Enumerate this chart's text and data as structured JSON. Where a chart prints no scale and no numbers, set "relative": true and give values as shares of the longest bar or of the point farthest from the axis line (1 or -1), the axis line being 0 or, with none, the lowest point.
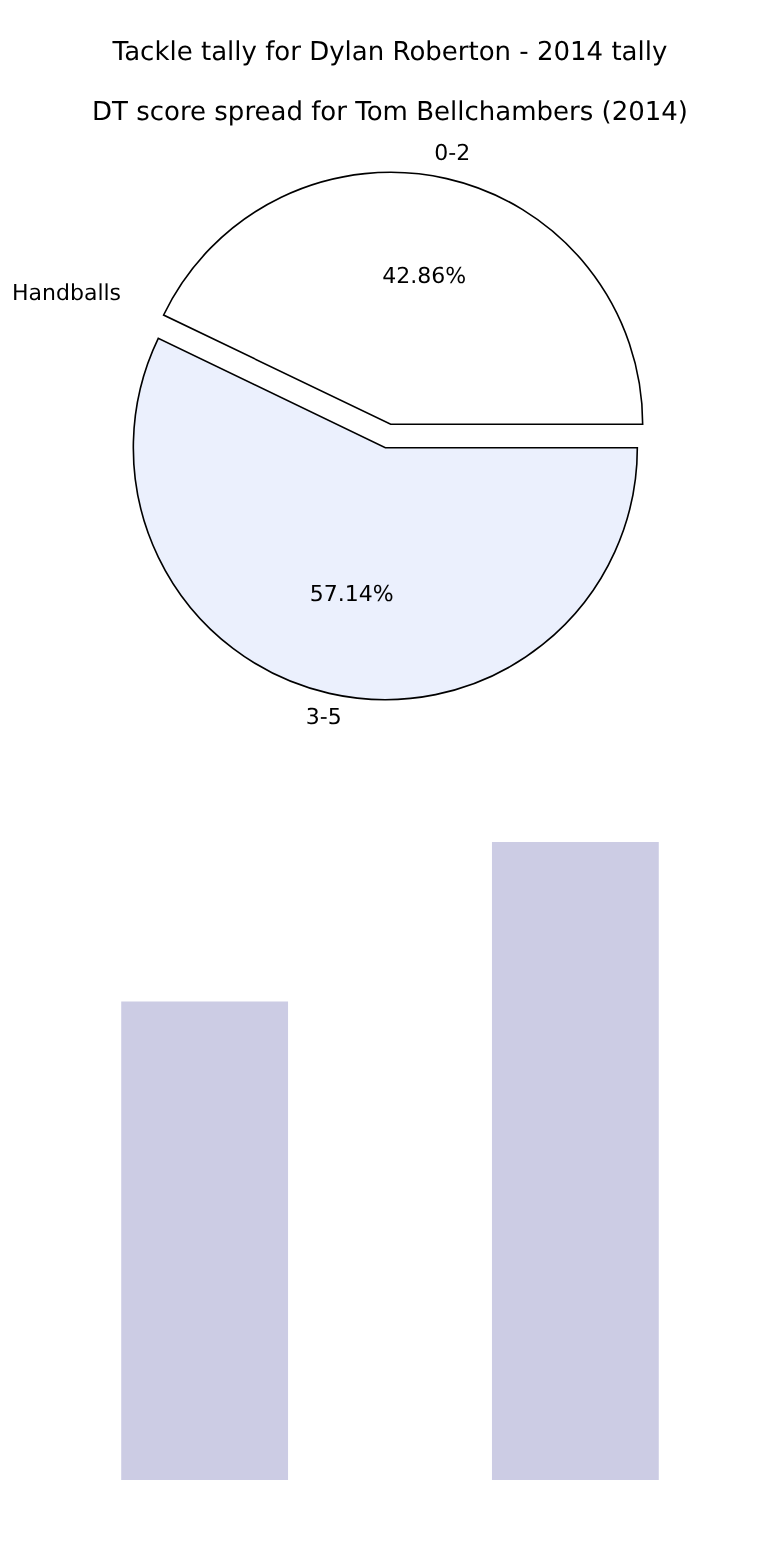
{
  "chart_data": [
    {
      "type": "pie",
      "title": "Tackle tally for Dylan Roberton - 2014 tally",
      "subtitle": "DT score spread for Tom Bellchambers (2014)",
      "categories": [
        "0-2",
        "3-5"
      ],
      "values": [
        42.86,
        57.14
      ],
      "colors": [
        "#ffffff",
        "#ebf0fd"
      ],
      "value_labels": [
        "42.86%",
        "57.14%"
      ],
      "annotations": [
        "Handballs"
      ]
    },
    {
      "type": "bar",
      "categories": [
        null,
        null
      ],
      "values": [
        0.75,
        1
      ],
      "colors": [
        "#cccce4",
        "#cccce4"
      ],
      "relative": true
    }
  ]
}
